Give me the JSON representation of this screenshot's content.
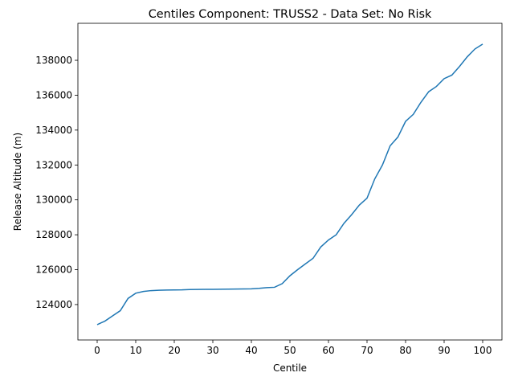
{
  "chart_data": {
    "type": "line",
    "title": "Centiles Component: TRUSS2 - Data Set: No Risk",
    "x_label": "Centile",
    "y_label": "Release Altitude (m)",
    "x": [
      0,
      2,
      4,
      6,
      8,
      10,
      12,
      14,
      16,
      18,
      20,
      22,
      24,
      26,
      28,
      30,
      32,
      34,
      36,
      38,
      40,
      42,
      44,
      46,
      48,
      50,
      52,
      54,
      56,
      58,
      60,
      62,
      64,
      66,
      68,
      70,
      72,
      74,
      76,
      78,
      80,
      82,
      84,
      86,
      88,
      90,
      92,
      94,
      96,
      98,
      100
    ],
    "series": [
      {
        "name": "TRUSS2",
        "color": "#1f77b4",
        "values": [
          122850,
          123050,
          123350,
          123650,
          124350,
          124650,
          124750,
          124800,
          124820,
          124830,
          124840,
          124845,
          124860,
          124865,
          124870,
          124875,
          124880,
          124885,
          124890,
          124895,
          124900,
          124930,
          124970,
          124990,
          125200,
          125650,
          126000,
          126330,
          126650,
          127300,
          127700,
          128000,
          128650,
          129150,
          129700,
          130100,
          131200,
          132000,
          133100,
          133600,
          134500,
          134900,
          135600,
          136200,
          136500,
          136950,
          137150,
          137650,
          138200,
          138650,
          138930
        ]
      }
    ],
    "xlim": [
      -5,
      105
    ],
    "ylim": [
      121970,
      140120
    ],
    "xticks": [
      0,
      10,
      20,
      30,
      40,
      50,
      60,
      70,
      80,
      90,
      100
    ],
    "yticks": [
      124000,
      126000,
      128000,
      130000,
      132000,
      134000,
      136000,
      138000
    ]
  }
}
